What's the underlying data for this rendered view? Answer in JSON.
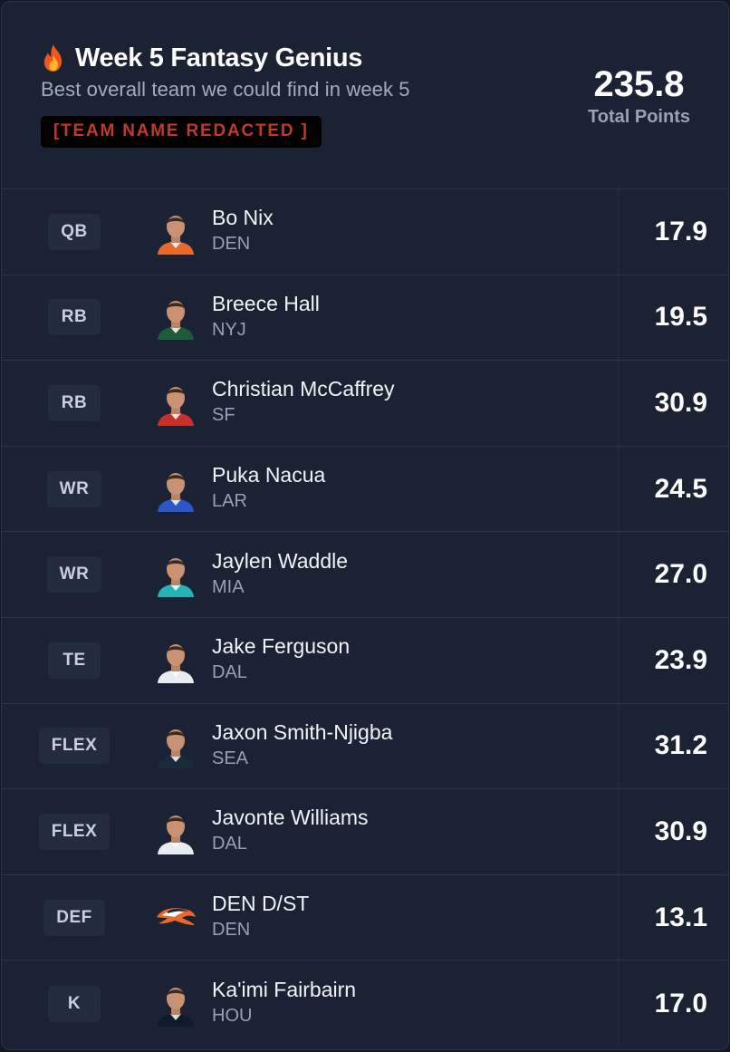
{
  "header": {
    "title": "Week 5 Fantasy Genius",
    "subtitle": "Best overall team we could find in week 5",
    "team_name": "[TEAM NAME REDACTED ]",
    "total_points": "235.8",
    "total_points_label": "Total Points",
    "icon": "fire-icon"
  },
  "colors": {
    "background": "#1a2234",
    "badge_text": "#c0392b"
  },
  "roster": [
    {
      "position": "QB",
      "name": "Bo Nix",
      "team": "DEN",
      "points": "17.9",
      "jersey": "#e8692a",
      "icon": "player-headshot"
    },
    {
      "position": "RB",
      "name": "Breece Hall",
      "team": "NYJ",
      "points": "19.5",
      "jersey": "#1d5b3a",
      "icon": "player-headshot"
    },
    {
      "position": "RB",
      "name": "Christian McCaffrey",
      "team": "SF",
      "points": "30.9",
      "jersey": "#c8302c",
      "icon": "player-headshot"
    },
    {
      "position": "WR",
      "name": "Puka Nacua",
      "team": "LAR",
      "points": "24.5",
      "jersey": "#2b57c9",
      "icon": "player-headshot"
    },
    {
      "position": "WR",
      "name": "Jaylen Waddle",
      "team": "MIA",
      "points": "27.0",
      "jersey": "#26b3b8",
      "icon": "player-headshot"
    },
    {
      "position": "TE",
      "name": "Jake Ferguson",
      "team": "DAL",
      "points": "23.9",
      "jersey": "#e9ecf1",
      "icon": "player-headshot"
    },
    {
      "position": "FLEX",
      "name": "Jaxon Smith-Njigba",
      "team": "SEA",
      "points": "31.2",
      "jersey": "#1b2a3a",
      "icon": "player-headshot"
    },
    {
      "position": "FLEX",
      "name": "Javonte Williams",
      "team": "DAL",
      "points": "30.9",
      "jersey": "#e9ecf1",
      "icon": "player-headshot"
    },
    {
      "position": "DEF",
      "name": "DEN D/ST",
      "team": "DEN",
      "points": "13.1",
      "jersey": "#e8692a",
      "icon": "broncos-logo-icon"
    },
    {
      "position": "K",
      "name": "Ka'imi Fairbairn",
      "team": "HOU",
      "points": "17.0",
      "jersey": "#0f1a2b",
      "icon": "player-headshot"
    }
  ]
}
